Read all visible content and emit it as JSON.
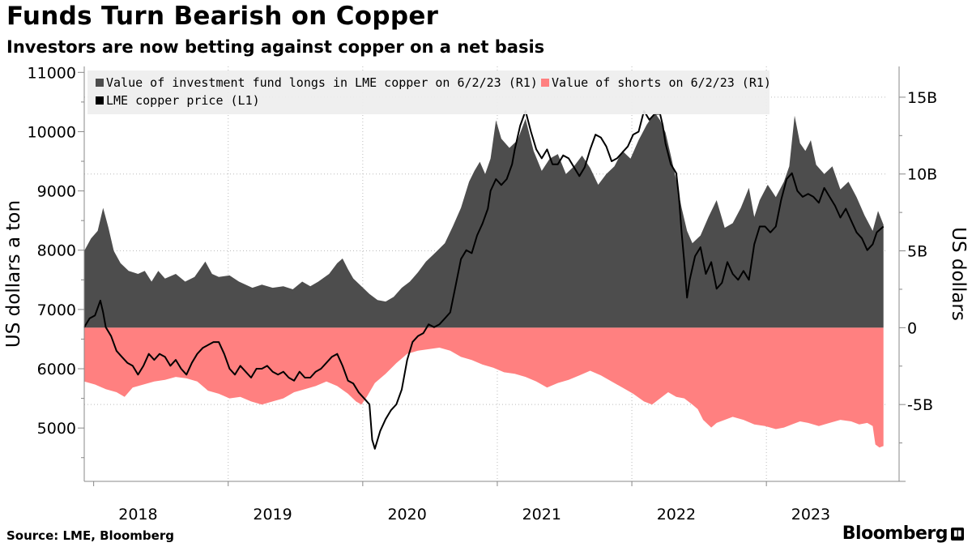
{
  "title": "Funds Turn Bearish on Copper",
  "subtitle": "Investors are now betting against copper on a net basis",
  "source": "Source: LME, Bloomberg",
  "brand": "Bloomberg",
  "chart_data": {
    "type": "area+line",
    "legend": [
      {
        "label": "Value of investment fund longs in LME copper on 6/2/23 (R1)",
        "color": "#4d4d4d"
      },
      {
        "label": "Value of shorts on 6/2/23 (R1)",
        "color": "#ff8080"
      },
      {
        "label": "LME copper price (L1)",
        "color": "#000000"
      }
    ],
    "legend_position": "top-left",
    "ylabel_left": "US dollars a ton",
    "ylabel_right": "US dollars",
    "y_left": {
      "min": 4100,
      "max": 11100,
      "ticks": [
        5000,
        6000,
        7000,
        8000,
        9000,
        10000,
        11000
      ]
    },
    "y_right": {
      "min": -10,
      "max": 17,
      "ticks": [
        -5,
        0,
        5,
        10,
        15
      ],
      "tick_labels": [
        "-5B",
        "0",
        "5B",
        "10B",
        "15B"
      ]
    },
    "x": {
      "start": 2017.6,
      "end": 2023.56,
      "year_labels": [
        "2018",
        "2019",
        "2020",
        "2021",
        "2022",
        "2023"
      ],
      "year_label_positions": [
        2018.0,
        2019.0,
        2020.0,
        2021.0,
        2022.0,
        2023.0
      ],
      "gridlines": [
        2018.67,
        2019.67,
        2020.67,
        2021.67,
        2022.67
      ]
    },
    "grid": true,
    "longs_B": [
      [
        2017.6,
        5.0
      ],
      [
        2017.65,
        5.8
      ],
      [
        2017.7,
        6.3
      ],
      [
        2017.74,
        7.8
      ],
      [
        2017.78,
        6.5
      ],
      [
        2017.82,
        5.0
      ],
      [
        2017.87,
        4.2
      ],
      [
        2017.93,
        3.7
      ],
      [
        2018.0,
        3.5
      ],
      [
        2018.05,
        3.7
      ],
      [
        2018.1,
        3.0
      ],
      [
        2018.15,
        3.7
      ],
      [
        2018.2,
        3.2
      ],
      [
        2018.28,
        3.5
      ],
      [
        2018.35,
        3.0
      ],
      [
        2018.42,
        3.3
      ],
      [
        2018.5,
        4.3
      ],
      [
        2018.55,
        3.5
      ],
      [
        2018.6,
        3.3
      ],
      [
        2018.68,
        3.4
      ],
      [
        2018.75,
        3.0
      ],
      [
        2018.85,
        2.6
      ],
      [
        2018.92,
        2.8
      ],
      [
        2019.0,
        2.6
      ],
      [
        2019.08,
        2.7
      ],
      [
        2019.15,
        2.5
      ],
      [
        2019.22,
        3.0
      ],
      [
        2019.28,
        2.7
      ],
      [
        2019.34,
        3.0
      ],
      [
        2019.42,
        3.5
      ],
      [
        2019.48,
        4.2
      ],
      [
        2019.52,
        4.5
      ],
      [
        2019.56,
        3.8
      ],
      [
        2019.6,
        3.2
      ],
      [
        2019.66,
        2.7
      ],
      [
        2019.72,
        2.2
      ],
      [
        2019.78,
        1.8
      ],
      [
        2019.84,
        1.7
      ],
      [
        2019.9,
        2.0
      ],
      [
        2019.96,
        2.6
      ],
      [
        2020.02,
        3.0
      ],
      [
        2020.08,
        3.6
      ],
      [
        2020.14,
        4.3
      ],
      [
        2020.2,
        4.8
      ],
      [
        2020.28,
        5.5
      ],
      [
        2020.34,
        6.6
      ],
      [
        2020.4,
        7.8
      ],
      [
        2020.46,
        9.5
      ],
      [
        2020.5,
        10.2
      ],
      [
        2020.54,
        10.8
      ],
      [
        2020.58,
        10.0
      ],
      [
        2020.62,
        11.0
      ],
      [
        2020.66,
        13.5
      ],
      [
        2020.7,
        12.3
      ],
      [
        2020.76,
        11.7
      ],
      [
        2020.82,
        12.2
      ],
      [
        2020.88,
        13.6
      ],
      [
        2020.94,
        11.5
      ],
      [
        2021.0,
        10.2
      ],
      [
        2021.06,
        11.0
      ],
      [
        2021.12,
        11.3
      ],
      [
        2021.18,
        10.0
      ],
      [
        2021.24,
        10.5
      ],
      [
        2021.3,
        11.2
      ],
      [
        2021.36,
        10.4
      ],
      [
        2021.42,
        9.3
      ],
      [
        2021.48,
        10.0
      ],
      [
        2021.54,
        10.5
      ],
      [
        2021.6,
        11.5
      ],
      [
        2021.66,
        11.0
      ],
      [
        2021.72,
        12.2
      ],
      [
        2021.78,
        13.2
      ],
      [
        2021.84,
        14.0
      ],
      [
        2021.88,
        13.5
      ],
      [
        2021.92,
        12.7
      ],
      [
        2021.96,
        11.2
      ],
      [
        2022.0,
        9.6
      ],
      [
        2022.04,
        7.8
      ],
      [
        2022.08,
        6.3
      ],
      [
        2022.12,
        5.5
      ],
      [
        2022.18,
        6.0
      ],
      [
        2022.24,
        7.2
      ],
      [
        2022.3,
        8.3
      ],
      [
        2022.36,
        6.5
      ],
      [
        2022.42,
        6.8
      ],
      [
        2022.48,
        7.8
      ],
      [
        2022.54,
        9.1
      ],
      [
        2022.58,
        7.2
      ],
      [
        2022.62,
        8.3
      ],
      [
        2022.68,
        9.3
      ],
      [
        2022.74,
        8.5
      ],
      [
        2022.8,
        9.5
      ],
      [
        2022.84,
        10.5
      ],
      [
        2022.88,
        13.8
      ],
      [
        2022.92,
        12.0
      ],
      [
        2022.96,
        11.5
      ],
      [
        2023.0,
        12.2
      ],
      [
        2023.04,
        10.6
      ],
      [
        2023.1,
        10.0
      ],
      [
        2023.16,
        10.5
      ],
      [
        2023.22,
        9.0
      ],
      [
        2023.28,
        9.5
      ],
      [
        2023.34,
        8.5
      ],
      [
        2023.4,
        7.3
      ],
      [
        2023.46,
        6.3
      ],
      [
        2023.5,
        7.6
      ],
      [
        2023.54,
        6.7
      ]
    ],
    "shorts_B": [
      [
        2017.6,
        -3.5
      ],
      [
        2017.68,
        -3.7
      ],
      [
        2017.76,
        -4.0
      ],
      [
        2017.84,
        -4.2
      ],
      [
        2017.9,
        -4.5
      ],
      [
        2017.96,
        -3.9
      ],
      [
        2018.04,
        -3.7
      ],
      [
        2018.12,
        -3.5
      ],
      [
        2018.2,
        -3.4
      ],
      [
        2018.28,
        -3.2
      ],
      [
        2018.36,
        -3.3
      ],
      [
        2018.44,
        -3.5
      ],
      [
        2018.52,
        -4.1
      ],
      [
        2018.6,
        -4.3
      ],
      [
        2018.68,
        -4.6
      ],
      [
        2018.76,
        -4.5
      ],
      [
        2018.84,
        -4.8
      ],
      [
        2018.92,
        -5.0
      ],
      [
        2019.0,
        -4.8
      ],
      [
        2019.08,
        -4.6
      ],
      [
        2019.16,
        -4.2
      ],
      [
        2019.24,
        -4.0
      ],
      [
        2019.32,
        -3.8
      ],
      [
        2019.4,
        -3.5
      ],
      [
        2019.48,
        -3.8
      ],
      [
        2019.56,
        -4.3
      ],
      [
        2019.62,
        -4.8
      ],
      [
        2019.66,
        -5.0
      ],
      [
        2019.7,
        -4.5
      ],
      [
        2019.76,
        -3.6
      ],
      [
        2019.84,
        -3.0
      ],
      [
        2019.92,
        -2.3
      ],
      [
        2020.0,
        -1.7
      ],
      [
        2020.08,
        -1.5
      ],
      [
        2020.16,
        -1.4
      ],
      [
        2020.24,
        -1.3
      ],
      [
        2020.32,
        -1.5
      ],
      [
        2020.4,
        -1.9
      ],
      [
        2020.48,
        -2.1
      ],
      [
        2020.56,
        -2.4
      ],
      [
        2020.64,
        -2.6
      ],
      [
        2020.72,
        -2.9
      ],
      [
        2020.8,
        -3.0
      ],
      [
        2020.88,
        -3.2
      ],
      [
        2020.96,
        -3.5
      ],
      [
        2021.04,
        -3.9
      ],
      [
        2021.12,
        -3.6
      ],
      [
        2021.2,
        -3.4
      ],
      [
        2021.28,
        -3.1
      ],
      [
        2021.36,
        -2.8
      ],
      [
        2021.44,
        -3.1
      ],
      [
        2021.52,
        -3.5
      ],
      [
        2021.6,
        -3.9
      ],
      [
        2021.68,
        -4.3
      ],
      [
        2021.76,
        -4.8
      ],
      [
        2021.82,
        -5.0
      ],
      [
        2021.88,
        -4.6
      ],
      [
        2021.94,
        -4.2
      ],
      [
        2022.0,
        -4.5
      ],
      [
        2022.06,
        -4.6
      ],
      [
        2022.12,
        -5.0
      ],
      [
        2022.16,
        -5.3
      ],
      [
        2022.2,
        -6.0
      ],
      [
        2022.26,
        -6.5
      ],
      [
        2022.3,
        -6.2
      ],
      [
        2022.36,
        -6.0
      ],
      [
        2022.42,
        -5.8
      ],
      [
        2022.5,
        -6.0
      ],
      [
        2022.58,
        -6.3
      ],
      [
        2022.66,
        -6.4
      ],
      [
        2022.74,
        -6.6
      ],
      [
        2022.8,
        -6.5
      ],
      [
        2022.86,
        -6.3
      ],
      [
        2022.92,
        -6.1
      ],
      [
        2022.98,
        -6.2
      ],
      [
        2023.06,
        -6.4
      ],
      [
        2023.14,
        -6.2
      ],
      [
        2023.22,
        -6.0
      ],
      [
        2023.3,
        -6.1
      ],
      [
        2023.36,
        -6.3
      ],
      [
        2023.42,
        -6.2
      ],
      [
        2023.46,
        -6.4
      ],
      [
        2023.48,
        -7.6
      ],
      [
        2023.51,
        -7.8
      ],
      [
        2023.54,
        -7.7
      ]
    ],
    "price_L1": [
      [
        2017.6,
        6700
      ],
      [
        2017.64,
        6850
      ],
      [
        2017.68,
        6900
      ],
      [
        2017.72,
        7150
      ],
      [
        2017.74,
        6950
      ],
      [
        2017.76,
        6700
      ],
      [
        2017.8,
        6550
      ],
      [
        2017.84,
        6300
      ],
      [
        2017.88,
        6200
      ],
      [
        2017.92,
        6100
      ],
      [
        2017.96,
        6050
      ],
      [
        2018.0,
        5900
      ],
      [
        2018.04,
        6050
      ],
      [
        2018.08,
        6250
      ],
      [
        2018.12,
        6150
      ],
      [
        2018.16,
        6250
      ],
      [
        2018.2,
        6200
      ],
      [
        2018.24,
        6050
      ],
      [
        2018.28,
        6150
      ],
      [
        2018.32,
        6000
      ],
      [
        2018.36,
        5900
      ],
      [
        2018.4,
        6100
      ],
      [
        2018.44,
        6250
      ],
      [
        2018.48,
        6350
      ],
      [
        2018.52,
        6400
      ],
      [
        2018.56,
        6450
      ],
      [
        2018.6,
        6450
      ],
      [
        2018.64,
        6250
      ],
      [
        2018.68,
        6000
      ],
      [
        2018.72,
        5900
      ],
      [
        2018.76,
        6050
      ],
      [
        2018.8,
        5950
      ],
      [
        2018.84,
        5850
      ],
      [
        2018.88,
        6000
      ],
      [
        2018.92,
        6000
      ],
      [
        2018.96,
        6050
      ],
      [
        2019.0,
        5950
      ],
      [
        2019.04,
        5900
      ],
      [
        2019.08,
        5950
      ],
      [
        2019.12,
        5850
      ],
      [
        2019.16,
        5800
      ],
      [
        2019.2,
        5950
      ],
      [
        2019.24,
        5850
      ],
      [
        2019.28,
        5850
      ],
      [
        2019.32,
        5950
      ],
      [
        2019.36,
        6000
      ],
      [
        2019.4,
        6100
      ],
      [
        2019.44,
        6200
      ],
      [
        2019.48,
        6250
      ],
      [
        2019.52,
        6050
      ],
      [
        2019.56,
        5800
      ],
      [
        2019.6,
        5750
      ],
      [
        2019.64,
        5600
      ],
      [
        2019.68,
        5500
      ],
      [
        2019.72,
        5400
      ],
      [
        2019.74,
        4800
      ],
      [
        2019.76,
        4650
      ],
      [
        2019.8,
        4950
      ],
      [
        2019.84,
        5150
      ],
      [
        2019.88,
        5300
      ],
      [
        2019.92,
        5400
      ],
      [
        2019.96,
        5650
      ],
      [
        2020.0,
        6150
      ],
      [
        2020.04,
        6450
      ],
      [
        2020.08,
        6550
      ],
      [
        2020.12,
        6600
      ],
      [
        2020.16,
        6750
      ],
      [
        2020.2,
        6700
      ],
      [
        2020.24,
        6750
      ],
      [
        2020.28,
        6850
      ],
      [
        2020.32,
        6950
      ],
      [
        2020.36,
        7400
      ],
      [
        2020.4,
        7850
      ],
      [
        2020.44,
        8000
      ],
      [
        2020.48,
        7950
      ],
      [
        2020.52,
        8250
      ],
      [
        2020.56,
        8450
      ],
      [
        2020.6,
        8700
      ],
      [
        2020.62,
        9000
      ],
      [
        2020.66,
        9200
      ],
      [
        2020.7,
        9100
      ],
      [
        2020.74,
        9200
      ],
      [
        2020.78,
        9450
      ],
      [
        2020.8,
        9700
      ],
      [
        2020.84,
        10100
      ],
      [
        2020.88,
        10350
      ],
      [
        2020.92,
        10000
      ],
      [
        2020.96,
        9700
      ],
      [
        2021.0,
        9550
      ],
      [
        2021.04,
        9700
      ],
      [
        2021.08,
        9450
      ],
      [
        2021.12,
        9450
      ],
      [
        2021.16,
        9600
      ],
      [
        2021.2,
        9550
      ],
      [
        2021.24,
        9400
      ],
      [
        2021.28,
        9250
      ],
      [
        2021.32,
        9400
      ],
      [
        2021.36,
        9700
      ],
      [
        2021.4,
        9950
      ],
      [
        2021.44,
        9900
      ],
      [
        2021.48,
        9750
      ],
      [
        2021.52,
        9500
      ],
      [
        2021.56,
        9550
      ],
      [
        2021.6,
        9650
      ],
      [
        2021.64,
        9750
      ],
      [
        2021.68,
        9950
      ],
      [
        2021.72,
        10000
      ],
      [
        2021.76,
        10350
      ],
      [
        2021.8,
        10200
      ],
      [
        2021.84,
        10300
      ],
      [
        2021.88,
        10300
      ],
      [
        2021.9,
        10100
      ],
      [
        2021.92,
        9800
      ],
      [
        2021.96,
        9450
      ],
      [
        2022.0,
        9300
      ],
      [
        2022.02,
        8900
      ],
      [
        2022.04,
        8300
      ],
      [
        2022.06,
        7800
      ],
      [
        2022.08,
        7200
      ],
      [
        2022.1,
        7500
      ],
      [
        2022.14,
        7900
      ],
      [
        2022.18,
        8050
      ],
      [
        2022.22,
        7600
      ],
      [
        2022.26,
        7800
      ],
      [
        2022.3,
        7350
      ],
      [
        2022.34,
        7450
      ],
      [
        2022.38,
        7800
      ],
      [
        2022.42,
        7600
      ],
      [
        2022.46,
        7500
      ],
      [
        2022.5,
        7650
      ],
      [
        2022.54,
        7500
      ],
      [
        2022.58,
        8100
      ],
      [
        2022.62,
        8400
      ],
      [
        2022.66,
        8400
      ],
      [
        2022.7,
        8300
      ],
      [
        2022.74,
        8400
      ],
      [
        2022.78,
        8850
      ],
      [
        2022.82,
        9200
      ],
      [
        2022.86,
        9300
      ],
      [
        2022.9,
        9000
      ],
      [
        2022.94,
        8900
      ],
      [
        2022.98,
        8950
      ],
      [
        2023.02,
        8900
      ],
      [
        2023.06,
        8800
      ],
      [
        2023.1,
        9050
      ],
      [
        2023.14,
        8900
      ],
      [
        2023.18,
        8750
      ],
      [
        2023.22,
        8550
      ],
      [
        2023.26,
        8700
      ],
      [
        2023.3,
        8500
      ],
      [
        2023.34,
        8300
      ],
      [
        2023.38,
        8200
      ],
      [
        2023.42,
        8000
      ],
      [
        2023.46,
        8100
      ],
      [
        2023.49,
        8300
      ],
      [
        2023.54,
        8400
      ]
    ]
  }
}
